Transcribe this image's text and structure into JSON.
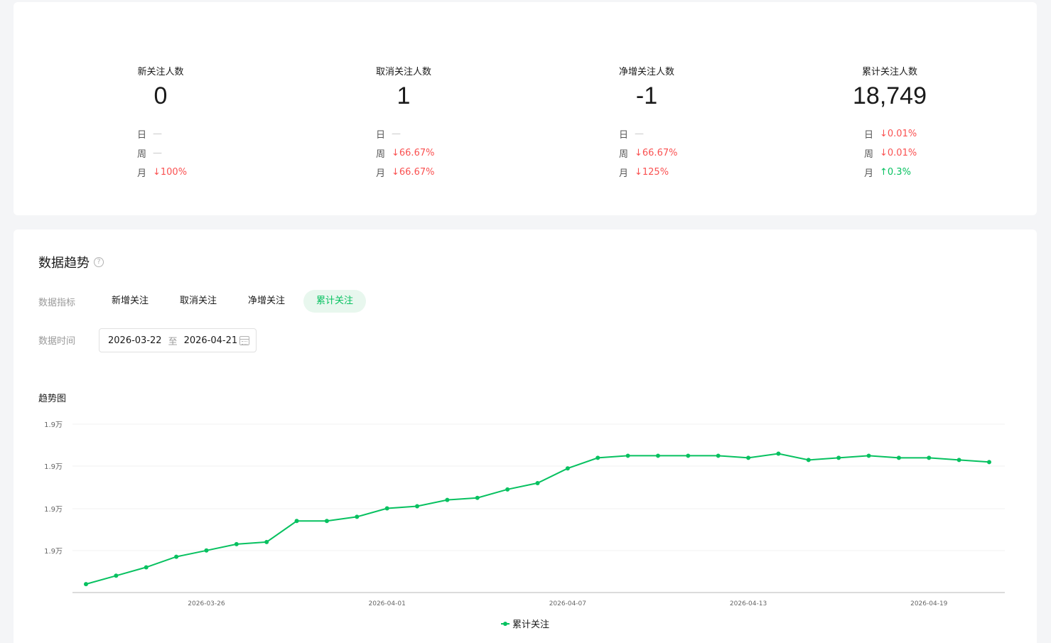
{
  "stats": [
    {
      "title": "新关注人数",
      "value": "0",
      "rows": [
        {
          "label": "日",
          "value": "—",
          "trend": "none"
        },
        {
          "label": "周",
          "value": "—",
          "trend": "none"
        },
        {
          "label": "月",
          "value": "↓100%",
          "trend": "down"
        }
      ]
    },
    {
      "title": "取消关注人数",
      "value": "1",
      "rows": [
        {
          "label": "日",
          "value": "—",
          "trend": "none"
        },
        {
          "label": "周",
          "value": "↓66.67%",
          "trend": "down"
        },
        {
          "label": "月",
          "value": "↓66.67%",
          "trend": "down"
        }
      ]
    },
    {
      "title": "净增关注人数",
      "value": "-1",
      "rows": [
        {
          "label": "日",
          "value": "—",
          "trend": "none"
        },
        {
          "label": "周",
          "value": "↓66.67%",
          "trend": "down"
        },
        {
          "label": "月",
          "value": "↓125%",
          "trend": "down"
        }
      ]
    },
    {
      "title": "累计关注人数",
      "value": "18,749",
      "rows": [
        {
          "label": "日",
          "value": "↓0.01%",
          "trend": "down"
        },
        {
          "label": "周",
          "value": "↓0.01%",
          "trend": "down"
        },
        {
          "label": "月",
          "value": "↑0.3%",
          "trend": "up"
        }
      ]
    }
  ],
  "trend": {
    "title": "数据趋势",
    "help_icon": "help-circle-icon",
    "metric_label": "数据指标",
    "tabs": [
      {
        "label": "新增关注",
        "active": false
      },
      {
        "label": "取消关注",
        "active": false
      },
      {
        "label": "净增关注",
        "active": false
      },
      {
        "label": "累计关注",
        "active": true
      }
    ],
    "time_label": "数据时间",
    "date_start": "2026-03-22",
    "date_sep": "至",
    "date_end": "2026-04-21",
    "calendar_icon": "calendar-icon",
    "chart_title": "趋势图"
  },
  "colors": {
    "accent": "#07c160",
    "down": "#fa5151",
    "up": "#07c160"
  },
  "chart_data": {
    "type": "line",
    "title": "趋势图",
    "xlabel": "",
    "ylabel": "",
    "x": [
      "2026-03-22",
      "2026-03-23",
      "2026-03-24",
      "2026-03-25",
      "2026-03-26",
      "2026-03-27",
      "2026-03-28",
      "2026-03-29",
      "2026-03-30",
      "2026-03-31",
      "2026-04-01",
      "2026-04-02",
      "2026-04-03",
      "2026-04-04",
      "2026-04-05",
      "2026-04-06",
      "2026-04-07",
      "2026-04-08",
      "2026-04-09",
      "2026-04-10",
      "2026-04-11",
      "2026-04-12",
      "2026-04-13",
      "2026-04-14",
      "2026-04-15",
      "2026-04-16",
      "2026-04-17",
      "2026-04-18",
      "2026-04-19",
      "2026-04-20",
      "2026-04-21"
    ],
    "x_tick_labels": [
      "2026-03-26",
      "2026-04-01",
      "2026-04-07",
      "2026-04-13",
      "2026-04-19"
    ],
    "y_tick_labels": [
      "1.9万",
      "1.9万",
      "1.9万",
      "1.9万"
    ],
    "ylim": [
      18687,
      18767
    ],
    "grid": true,
    "legend_position": "bottom",
    "series": [
      {
        "name": "累计关注",
        "color": "#07c160",
        "values": [
          18691,
          18695,
          18699,
          18704,
          18707,
          18710,
          18711,
          18721,
          18721,
          18723,
          18727,
          18728,
          18731,
          18732,
          18736,
          18739,
          18746,
          18751,
          18752,
          18752,
          18752,
          18752,
          18751,
          18753,
          18750,
          18751,
          18752,
          18751,
          18751,
          18750,
          18749
        ]
      }
    ]
  }
}
